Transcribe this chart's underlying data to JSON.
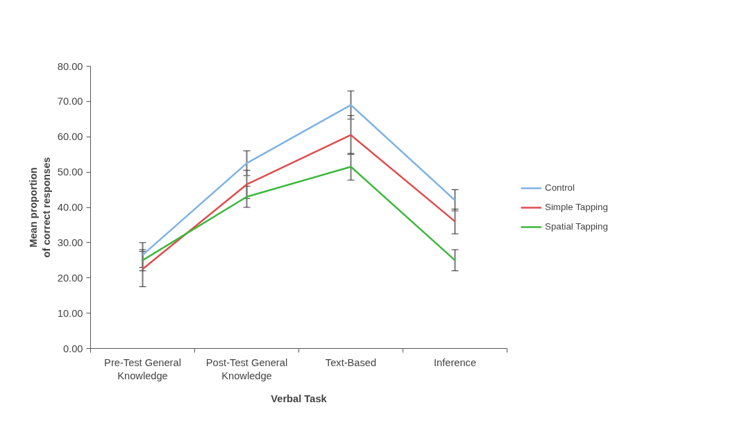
{
  "chart_data": {
    "type": "line",
    "xlabel": "Verbal Task",
    "ylabel": "Mean proportion\nof correct responses",
    "categories": [
      "Pre-Test General\nKnowledge",
      "Post-Test General\nKnowledge",
      "Text-Based",
      "Inference"
    ],
    "series": [
      {
        "name": "Control",
        "color": "#7fb2e5",
        "values": [
          26.5,
          52.5,
          69,
          42
        ],
        "errors": [
          3.5,
          3.5,
          4,
          3
        ]
      },
      {
        "name": "Simple Tapping",
        "color": "#e04c4c",
        "values": [
          22.5,
          46.5,
          60.5,
          36
        ],
        "errors": [
          5,
          4,
          5.5,
          3.5
        ]
      },
      {
        "name": "Spatial Tapping",
        "color": "#3cb83c",
        "values": [
          25,
          43,
          51.5,
          25
        ],
        "errors": [
          3,
          3,
          3.8,
          3
        ]
      }
    ],
    "ylim": [
      0,
      80
    ],
    "yticks": [
      {
        "value": 0,
        "label": "0.00"
      },
      {
        "value": 10,
        "label": "10.00"
      },
      {
        "value": 20,
        "label": "20.00"
      },
      {
        "value": 30,
        "label": "30.00"
      },
      {
        "value": 40,
        "label": "40.00"
      },
      {
        "value": 50,
        "label": "50.00"
      },
      {
        "value": 60,
        "label": "60.00"
      },
      {
        "value": 70,
        "label": "70.00"
      },
      {
        "value": 80,
        "label": "80.00"
      }
    ],
    "grid": false,
    "legend": "right",
    "marker": "none",
    "line_style": "solid"
  }
}
